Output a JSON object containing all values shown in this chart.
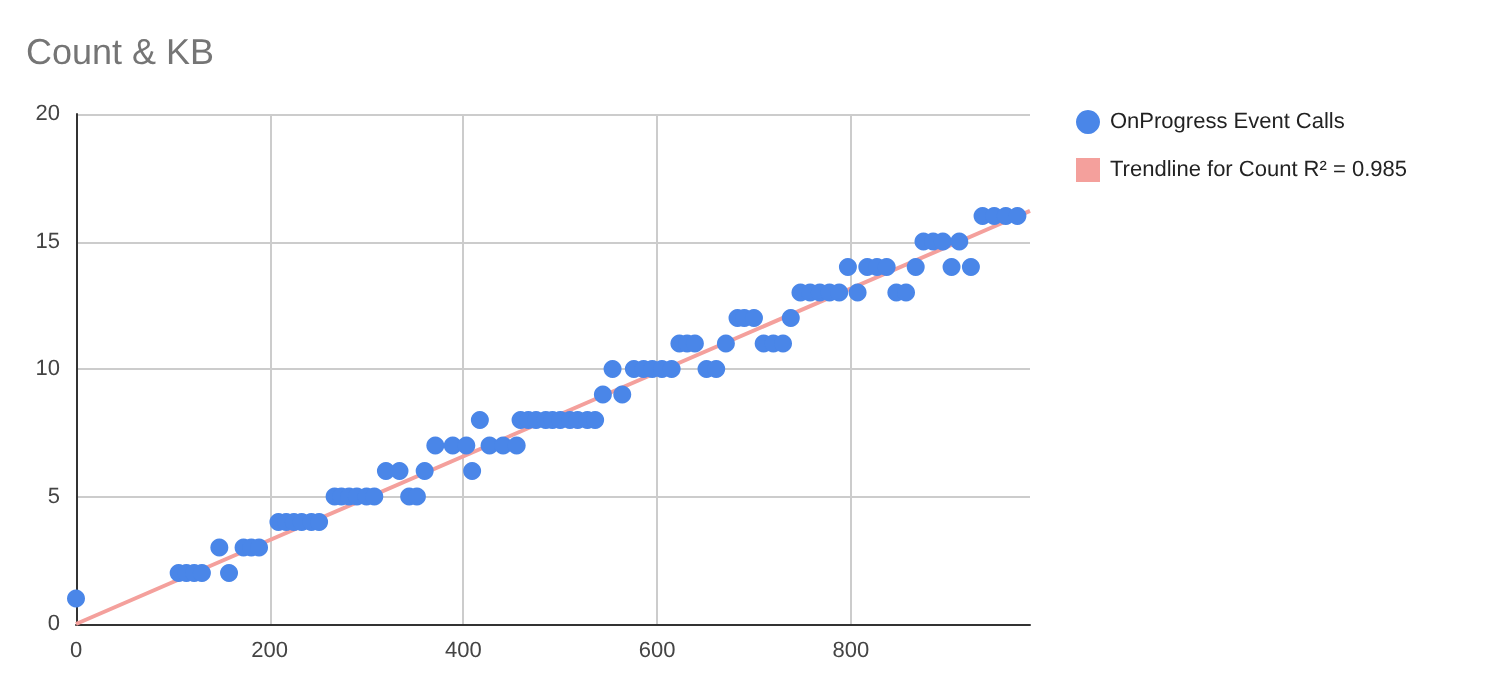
{
  "chart_data": {
    "type": "scatter",
    "title": "Count & KB",
    "xlim": [
      0,
      985
    ],
    "xticks": [
      0,
      200,
      400,
      600,
      800
    ],
    "ylim": [
      0,
      20
    ],
    "yticks": [
      0,
      5,
      10,
      15,
      20
    ],
    "grid": true,
    "legend": "right",
    "series": [
      {
        "name": "OnProgress Event Calls",
        "color": "#4a86e8",
        "marker": "circle",
        "x": [
          0,
          106,
          114,
          122,
          130,
          148,
          158,
          173,
          181,
          189,
          209,
          217,
          225,
          233,
          243,
          251,
          267,
          274,
          282,
          290,
          300,
          308,
          320,
          334,
          344,
          352,
          360,
          371,
          389,
          403,
          409,
          417,
          427,
          441,
          455,
          459,
          467,
          475,
          485,
          492,
          500,
          510,
          518,
          528,
          536,
          544,
          554,
          564,
          576,
          586,
          595,
          605,
          615,
          623,
          631,
          639,
          651,
          661,
          671,
          683,
          690,
          700,
          710,
          720,
          730,
          738,
          748,
          758,
          768,
          778,
          788,
          797,
          807,
          817,
          827,
          837,
          847,
          857,
          867,
          875,
          885,
          895,
          904,
          912,
          924,
          936,
          948,
          960,
          972
        ],
        "values": [
          1,
          2,
          2,
          2,
          2,
          3,
          2,
          3,
          3,
          3,
          4,
          4,
          4,
          4,
          4,
          4,
          5,
          5,
          5,
          5,
          5,
          5,
          6,
          6,
          5,
          5,
          6,
          7,
          7,
          7,
          6,
          8,
          7,
          7,
          7,
          8,
          8,
          8,
          8,
          8,
          8,
          8,
          8,
          8,
          8,
          9,
          10,
          9,
          10,
          10,
          10,
          10,
          10,
          11,
          11,
          11,
          10,
          10,
          11,
          12,
          12,
          12,
          11,
          11,
          11,
          12,
          13,
          13,
          13,
          13,
          13,
          14,
          13,
          14,
          14,
          14,
          13,
          13,
          14,
          15,
          15,
          15,
          14,
          15,
          14,
          16,
          16,
          16,
          16
        ]
      },
      {
        "type": "line",
        "name": "Trendline for Count R² = 0.985",
        "color": "#f4a09c",
        "marker": "none",
        "x": [
          0,
          985
        ],
        "values": [
          0,
          16.2
        ]
      }
    ]
  }
}
